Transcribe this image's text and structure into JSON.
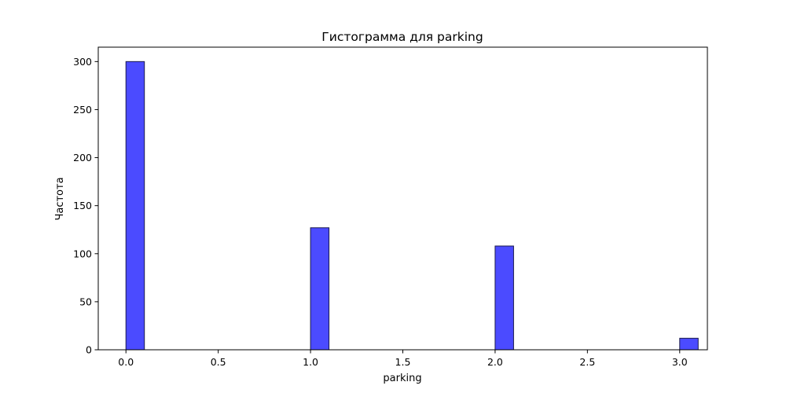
{
  "chart_data": {
    "type": "bar",
    "title": "Гистограмма для parking",
    "xlabel": "parking",
    "ylabel": "Частота",
    "x": [
      0,
      1,
      2,
      3
    ],
    "values": [
      300,
      127,
      108,
      12
    ],
    "bar_width": 0.1,
    "xlim": [
      -0.15,
      3.15
    ],
    "ylim": [
      0,
      315
    ],
    "xticks": [
      0.0,
      0.5,
      1.0,
      1.5,
      2.0,
      2.5,
      3.0
    ],
    "xtick_labels": [
      "0.0",
      "0.5",
      "1.0",
      "1.5",
      "2.0",
      "2.5",
      "3.0"
    ],
    "yticks": [
      0,
      50,
      100,
      150,
      200,
      250,
      300
    ],
    "ytick_labels": [
      "0",
      "50",
      "100",
      "150",
      "200",
      "250",
      "300"
    ],
    "grid": false,
    "bar_color": "#4b4bff",
    "bar_edge_color": "#1a1a4d"
  }
}
